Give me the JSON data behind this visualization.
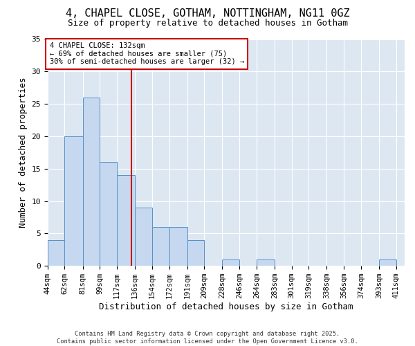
{
  "title1": "4, CHAPEL CLOSE, GOTHAM, NOTTINGHAM, NG11 0GZ",
  "title2": "Size of property relative to detached houses in Gotham",
  "xlabel": "Distribution of detached houses by size in Gotham",
  "ylabel": "Number of detached properties",
  "bin_edges": [
    44,
    62,
    81,
    99,
    117,
    136,
    154,
    172,
    191,
    209,
    228,
    246,
    264,
    283,
    301,
    319,
    338,
    356,
    374,
    393,
    411
  ],
  "bar_heights": [
    4,
    20,
    26,
    16,
    14,
    9,
    6,
    6,
    4,
    0,
    1,
    0,
    1,
    0,
    0,
    0,
    0,
    0,
    0,
    1
  ],
  "bar_color": "#c5d8ef",
  "bar_edge_color": "#5590c8",
  "vline_x": 132,
  "vline_color": "#cc0000",
  "annotation_text": "4 CHAPEL CLOSE: 132sqm\n← 69% of detached houses are smaller (75)\n30% of semi-detached houses are larger (32) →",
  "annotation_box_color": "white",
  "annotation_box_edge": "#cc0000",
  "ylim": [
    0,
    35
  ],
  "yticks": [
    0,
    5,
    10,
    15,
    20,
    25,
    30,
    35
  ],
  "bg_color": "#dde7f2",
  "footer_text": "Contains HM Land Registry data © Crown copyright and database right 2025.\nContains public sector information licensed under the Open Government Licence v3.0.",
  "tick_label_fontsize": 7.5,
  "axis_label_fontsize": 9,
  "title_fontsize1": 11,
  "title_fontsize2": 9
}
